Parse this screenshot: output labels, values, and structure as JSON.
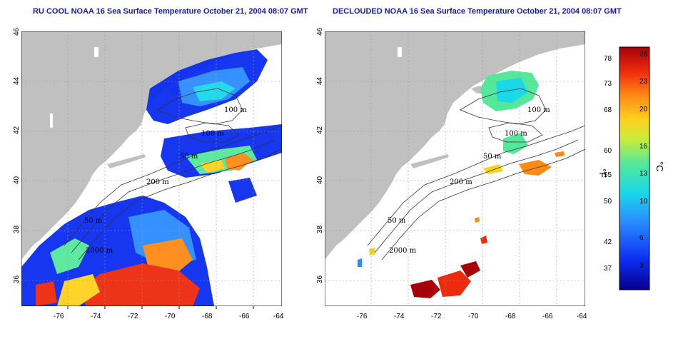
{
  "titles": {
    "left": "RU COOL NOAA 16 Sea Surface Temperature October 21, 2004 08:07 GMT",
    "right": "DECLOUDED NOAA 16 Sea Surface Temperature October 21, 2004 08:07 GMT"
  },
  "axes": {
    "lon_ticks": [
      "-76",
      "-74",
      "-72",
      "-70",
      "-68",
      "-66",
      "-64"
    ],
    "lat_ticks": [
      "36",
      "38",
      "40",
      "42",
      "44",
      "46"
    ]
  },
  "contour_labels": {
    "left": [
      "100 m",
      "100 m",
      "50 m",
      "200 m",
      "50 m",
      "2000 m"
    ],
    "right": [
      "100 m",
      "100 m",
      "50 m",
      "200 m",
      "50 m",
      "2000 m"
    ]
  },
  "colorbar": {
    "fahrenheit_ticks": [
      "78",
      "73",
      "68",
      "60",
      "55",
      "50",
      "42",
      "37"
    ],
    "celsius_ticks": [
      "26",
      "23",
      "20",
      "16",
      "13",
      "10",
      "6",
      "3"
    ],
    "fahrenheit_label": "°F",
    "celsius_label": "°C"
  },
  "colors": {
    "land": "#c0c0c0",
    "no_data": "#ffffff",
    "title": "#1a1aa8",
    "scale": [
      "#06008a",
      "#0b2cf0",
      "#2b8cff",
      "#19d8e8",
      "#55e89b",
      "#c8ec3a",
      "#ffd21f",
      "#ff8a14",
      "#ee2a0c",
      "#a8000a"
    ]
  }
}
